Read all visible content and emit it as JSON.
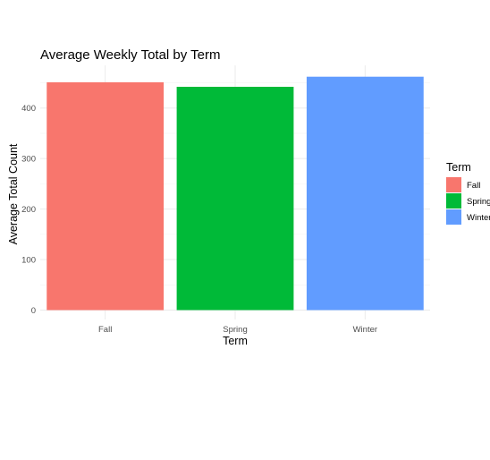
{
  "chart_data": {
    "type": "bar",
    "title": "Average Weekly Total by Term",
    "xlabel": "Term",
    "ylabel": "Average Total Count",
    "categories": [
      "Fall",
      "Spring",
      "Winter"
    ],
    "values": [
      451,
      442,
      462
    ],
    "colors": [
      "#F8766D",
      "#00BA38",
      "#619CFF"
    ],
    "ylim": [
      0,
      480
    ],
    "yticks": [
      0,
      100,
      200,
      300,
      400
    ],
    "grid": true,
    "legend": {
      "title": "Term",
      "position": "right",
      "items": [
        "Fall",
        "Spring",
        "Winter"
      ]
    }
  }
}
